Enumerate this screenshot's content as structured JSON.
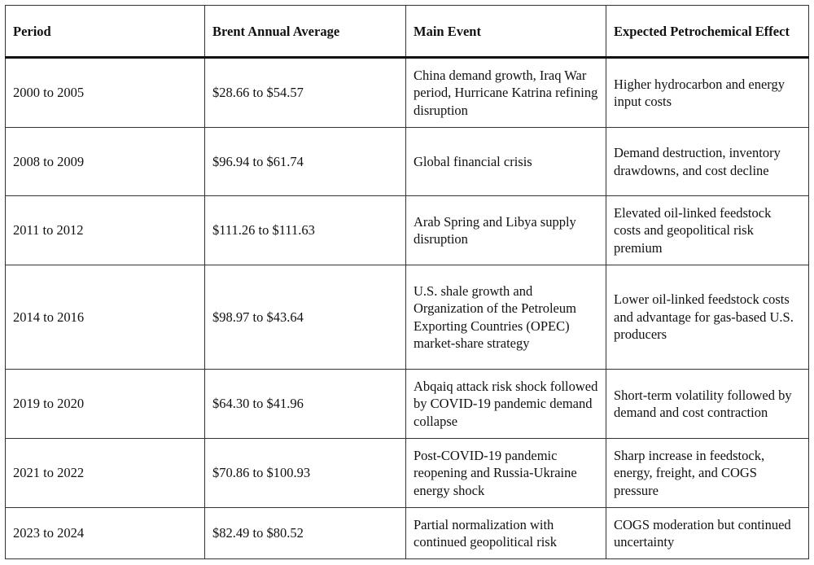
{
  "table": {
    "headers": [
      "Period",
      "Brent Annual Average",
      "Main Event",
      "Expected Petrochemical Effect"
    ],
    "rows": [
      {
        "period": "2000 to 2005",
        "brent": "$28.66 to $54.57",
        "event": "China demand growth, Iraq War period, Hurricane Katrina refining disruption",
        "effect": "Higher hydrocarbon and energy input costs"
      },
      {
        "period": "2008 to 2009",
        "brent": "$96.94 to $61.74",
        "event": "Global financial crisis",
        "effect": "Demand destruction, inventory drawdowns, and cost decline"
      },
      {
        "period": "2011 to 2012",
        "brent": "$111.26 to $111.63",
        "event": "Arab Spring and Libya supply disruption",
        "effect": "Elevated oil-linked feedstock costs and geopolitical risk premium"
      },
      {
        "period": "2014 to 2016",
        "brent": "$98.97 to $43.64",
        "event": "U.S. shale growth and Organization of the Petroleum Exporting Countries (OPEC) market-share strategy",
        "effect": "Lower oil-linked feedstock costs and advantage for gas-based U.S. producers"
      },
      {
        "period": "2019 to 2020",
        "brent": "$64.30 to $41.96",
        "event": "Abqaiq attack risk shock followed by COVID-19 pandemic demand collapse",
        "effect": "Short-term volatility followed by demand and cost contraction"
      },
      {
        "period": "2021 to 2022",
        "brent": "$70.86 to $100.93",
        "event": "Post-COVID-19 pandemic reopening and Russia-Ukraine energy shock",
        "effect": "Sharp increase in feedstock, energy, freight, and COGS pressure"
      },
      {
        "period": "2023 to 2024",
        "brent": "$82.49 to $80.52",
        "event": "Partial normalization with continued geopolitical risk",
        "effect": "COGS moderation but continued uncertainty"
      }
    ]
  }
}
